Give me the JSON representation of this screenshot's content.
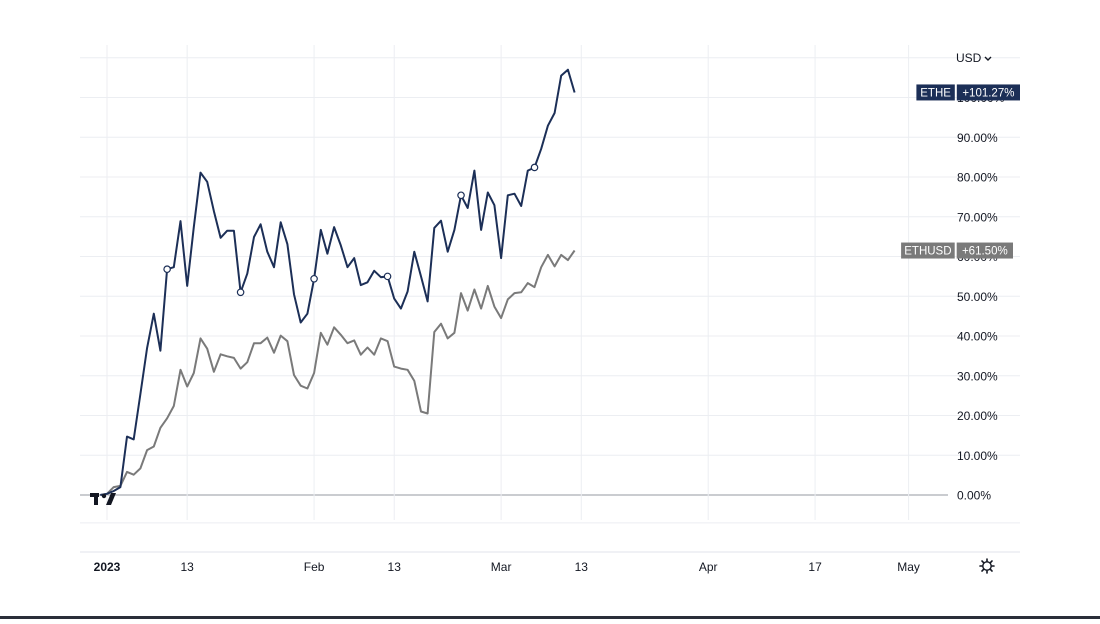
{
  "currency_selector": {
    "label": "USD",
    "icon": "chevron-down-icon"
  },
  "watermark": {
    "icon": "tradingview-logo-icon"
  },
  "settings": {
    "icon": "gear-icon"
  },
  "colors": {
    "ethe": "#1c2f57",
    "ethusd": "#7a7a7a",
    "grid": "#eceef2",
    "zero_line": "#9598a1",
    "text": "#131722"
  },
  "chart_data": {
    "type": "line",
    "title": "",
    "xlabel": "",
    "ylabel": "",
    "grid": true,
    "ylim": [
      -7,
      110
    ],
    "y_ticks": [
      {
        "value": 0,
        "label": "0.00%"
      },
      {
        "value": 10,
        "label": "10.00%"
      },
      {
        "value": 20,
        "label": "20.00%"
      },
      {
        "value": 30,
        "label": "30.00%"
      },
      {
        "value": 40,
        "label": "40.00%"
      },
      {
        "value": 50,
        "label": "50.00%"
      },
      {
        "value": 60,
        "label": "60.00%"
      },
      {
        "value": 70,
        "label": "70.00%"
      },
      {
        "value": 80,
        "label": "80.00%"
      },
      {
        "value": 90,
        "label": "90.00%"
      },
      {
        "value": 100,
        "label": "100.00%"
      }
    ],
    "x_ticks": [
      {
        "date": "2023-01-01",
        "label": "2023",
        "bold": true
      },
      {
        "date": "2023-01-13",
        "label": "13"
      },
      {
        "date": "2023-02-01",
        "label": "Feb"
      },
      {
        "date": "2023-02-13",
        "label": "13"
      },
      {
        "date": "2023-03-01",
        "label": "Mar"
      },
      {
        "date": "2023-03-13",
        "label": "13"
      },
      {
        "date": "2023-04-01",
        "label": "Apr"
      },
      {
        "date": "2023-04-17",
        "label": "17"
      },
      {
        "date": "2023-05-01",
        "label": "May"
      }
    ],
    "xlim": [
      "2022-12-31",
      "2023-05-11"
    ],
    "series": [
      {
        "name": "ETHE",
        "last_label": "+101.27%",
        "color": "#1c2f57",
        "points": [
          [
            "2022-12-31",
            0
          ],
          [
            "2023-01-01",
            0.3
          ],
          [
            "2023-01-02",
            1
          ],
          [
            "2023-01-03",
            2
          ],
          [
            "2023-01-04",
            14.7
          ],
          [
            "2023-01-05",
            14
          ],
          [
            "2023-01-06",
            25.4
          ],
          [
            "2023-01-07",
            37
          ],
          [
            "2023-01-08",
            45.6
          ],
          [
            "2023-01-09",
            36.3
          ],
          [
            "2023-01-10",
            56.8
          ],
          [
            "2023-01-11",
            57.3
          ],
          [
            "2023-01-12",
            68.9
          ],
          [
            "2023-01-13",
            52.6
          ],
          [
            "2023-01-14",
            67.4
          ],
          [
            "2023-01-15",
            81.1
          ],
          [
            "2023-01-16",
            78.8
          ],
          [
            "2023-01-17",
            71.4
          ],
          [
            "2023-01-18",
            64.7
          ],
          [
            "2023-01-19",
            66.5
          ],
          [
            "2023-01-20",
            66.5
          ],
          [
            "2023-01-21",
            51
          ],
          [
            "2023-01-22",
            55.7
          ],
          [
            "2023-01-23",
            64.9
          ],
          [
            "2023-01-24",
            68.1
          ],
          [
            "2023-01-25",
            61.2
          ],
          [
            "2023-01-26",
            57.3
          ],
          [
            "2023-01-27",
            68.6
          ],
          [
            "2023-01-28",
            63.1
          ],
          [
            "2023-01-29",
            50.5
          ],
          [
            "2023-01-30",
            43.4
          ],
          [
            "2023-01-31",
            45.6
          ],
          [
            "2023-02-01",
            54.4
          ],
          [
            "2023-02-02",
            66.7
          ],
          [
            "2023-02-03",
            60.7
          ],
          [
            "2023-02-04",
            67.4
          ],
          [
            "2023-02-05",
            62.8
          ],
          [
            "2023-02-06",
            57.3
          ],
          [
            "2023-02-07",
            59.6
          ],
          [
            "2023-02-08",
            52.8
          ],
          [
            "2023-02-09",
            53.5
          ],
          [
            "2023-02-10",
            56.4
          ],
          [
            "2023-02-11",
            54.8
          ],
          [
            "2023-02-12",
            55
          ],
          [
            "2023-02-13",
            49.4
          ],
          [
            "2023-02-14",
            46.9
          ],
          [
            "2023-02-15",
            51.2
          ],
          [
            "2023-02-16",
            61.2
          ],
          [
            "2023-02-17",
            55
          ],
          [
            "2023-02-18",
            48.7
          ],
          [
            "2023-02-19",
            67.2
          ],
          [
            "2023-02-20",
            69
          ],
          [
            "2023-02-21",
            61.2
          ],
          [
            "2023-02-22",
            66.7
          ],
          [
            "2023-02-23",
            75.4
          ],
          [
            "2023-02-24",
            72.2
          ],
          [
            "2023-02-25",
            81.6
          ],
          [
            "2023-02-26",
            66.7
          ],
          [
            "2023-02-27",
            76.1
          ],
          [
            "2023-02-28",
            72.9
          ],
          [
            "2023-03-01",
            59.6
          ],
          [
            "2023-03-02",
            75.4
          ],
          [
            "2023-03-03",
            75.8
          ],
          [
            "2023-03-04",
            72.7
          ],
          [
            "2023-03-05",
            81.6
          ],
          [
            "2023-03-06",
            82.4
          ],
          [
            "2023-03-07",
            87.1
          ],
          [
            "2023-03-08",
            92.9
          ],
          [
            "2023-03-09",
            96.1
          ],
          [
            "2023-03-10",
            105.5
          ],
          [
            "2023-03-11",
            107
          ],
          [
            "2023-03-12",
            101.27
          ]
        ]
      },
      {
        "name": "ETHUSD",
        "last_label": "+61.50%",
        "color": "#7a7a7a",
        "points": [
          [
            "2022-12-31",
            0
          ],
          [
            "2023-01-01",
            0.3
          ],
          [
            "2023-01-02",
            2
          ],
          [
            "2023-01-03",
            2.3
          ],
          [
            "2023-01-04",
            5.8
          ],
          [
            "2023-01-05",
            5.1
          ],
          [
            "2023-01-06",
            6.7
          ],
          [
            "2023-01-07",
            11.3
          ],
          [
            "2023-01-08",
            12.2
          ],
          [
            "2023-01-09",
            16.9
          ],
          [
            "2023-01-10",
            19.3
          ],
          [
            "2023-01-11",
            22.4
          ],
          [
            "2023-01-12",
            31.5
          ],
          [
            "2023-01-13",
            27.3
          ],
          [
            "2023-01-14",
            30.7
          ],
          [
            "2023-01-15",
            39.4
          ],
          [
            "2023-01-16",
            36.8
          ],
          [
            "2023-01-17",
            31
          ],
          [
            "2023-01-18",
            35.4
          ],
          [
            "2023-01-19",
            34.9
          ],
          [
            "2023-01-20",
            34.5
          ],
          [
            "2023-01-21",
            31.8
          ],
          [
            "2023-01-22",
            33.4
          ],
          [
            "2023-01-23",
            38.2
          ],
          [
            "2023-01-24",
            38.2
          ],
          [
            "2023-01-25",
            39.6
          ],
          [
            "2023-01-26",
            35.8
          ],
          [
            "2023-01-27",
            40.1
          ],
          [
            "2023-01-28",
            38.7
          ],
          [
            "2023-01-29",
            30.2
          ],
          [
            "2023-01-30",
            27.5
          ],
          [
            "2023-01-31",
            26.8
          ],
          [
            "2023-02-01",
            30.7
          ],
          [
            "2023-02-02",
            40.8
          ],
          [
            "2023-02-03",
            37.8
          ],
          [
            "2023-02-04",
            42.2
          ],
          [
            "2023-02-05",
            40.3
          ],
          [
            "2023-02-06",
            38.2
          ],
          [
            "2023-02-07",
            38.9
          ],
          [
            "2023-02-08",
            35.3
          ],
          [
            "2023-02-09",
            37.1
          ],
          [
            "2023-02-10",
            35.3
          ],
          [
            "2023-02-11",
            39.4
          ],
          [
            "2023-02-12",
            38.7
          ],
          [
            "2023-02-13",
            32.3
          ],
          [
            "2023-02-14",
            31.8
          ],
          [
            "2023-02-15",
            31.5
          ],
          [
            "2023-02-16",
            28.7
          ],
          [
            "2023-02-17",
            21
          ],
          [
            "2023-02-18",
            20.5
          ],
          [
            "2023-02-19",
            41
          ],
          [
            "2023-02-20",
            43.1
          ],
          [
            "2023-02-21",
            39.4
          ],
          [
            "2023-02-22",
            40.8
          ],
          [
            "2023-02-23",
            50.8
          ],
          [
            "2023-02-24",
            46.4
          ],
          [
            "2023-02-25",
            51.7
          ],
          [
            "2023-02-26",
            46.9
          ],
          [
            "2023-02-27",
            52.6
          ],
          [
            "2023-02-28",
            47.4
          ],
          [
            "2023-03-01",
            44.5
          ],
          [
            "2023-03-02",
            49.2
          ],
          [
            "2023-03-03",
            50.8
          ],
          [
            "2023-03-04",
            51
          ],
          [
            "2023-03-05",
            53.3
          ],
          [
            "2023-03-06",
            52.3
          ],
          [
            "2023-03-07",
            57.3
          ],
          [
            "2023-03-08",
            60.4
          ],
          [
            "2023-03-09",
            57.5
          ],
          [
            "2023-03-10",
            60.4
          ],
          [
            "2023-03-11",
            59.1
          ],
          [
            "2023-03-12",
            61.5
          ]
        ]
      }
    ],
    "markers": [
      {
        "series": "ETHE",
        "date": "2023-01-10",
        "value": 56.8
      },
      {
        "series": "ETHE",
        "date": "2023-01-21",
        "value": 51
      },
      {
        "series": "ETHE",
        "date": "2023-02-01",
        "value": 54.4
      },
      {
        "series": "ETHE",
        "date": "2023-02-12",
        "value": 55
      },
      {
        "series": "ETHE",
        "date": "2023-02-23",
        "value": 75.4
      },
      {
        "series": "ETHE",
        "date": "2023-03-06",
        "value": 82.4
      }
    ]
  }
}
